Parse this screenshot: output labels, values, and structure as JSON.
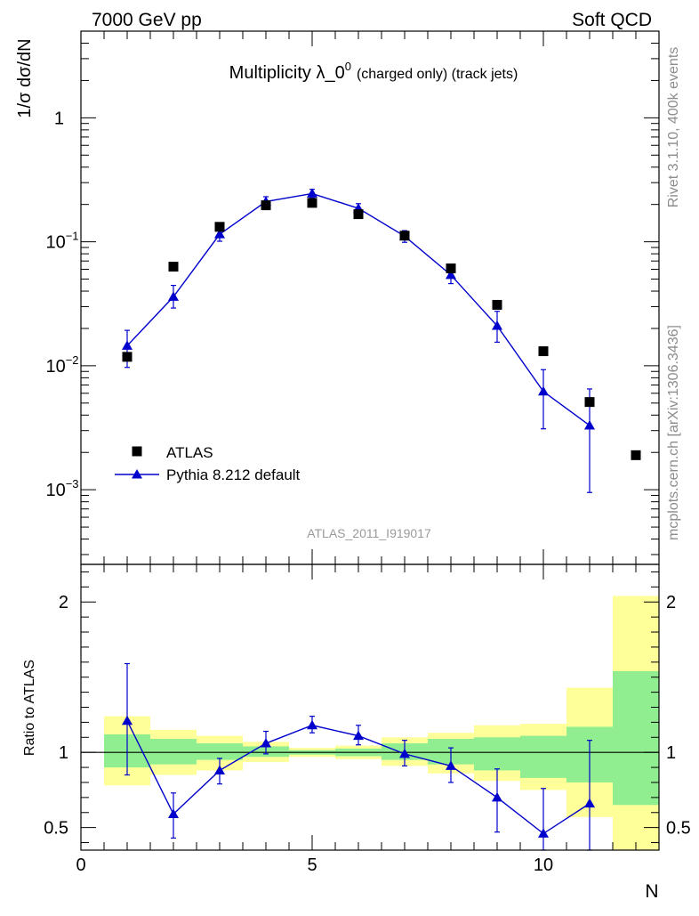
{
  "header": {
    "energy_label": "7000 GeV pp",
    "category_label": "Soft QCD"
  },
  "side_notes": {
    "version": "Rivet 3.1.10,  400k events",
    "source": "mcplots.cern.ch [arXiv:1306.3436]"
  },
  "analysis_tag": "ATLAS_2011_I919017",
  "colors": {
    "atlas": "#000000",
    "pythia": "#0000cc",
    "band_inner": "#90ee90",
    "band_outer": "#ffff99"
  },
  "chart_data": [
    {
      "type": "scatter",
      "panel": "main",
      "title_main": "Multiplicity λ_0",
      "title_sup": "0",
      "title_small": "(charged only) (track jets)",
      "xlabel": "N",
      "ylabel": "1/σ dσ/dN",
      "yscale": "log",
      "xlim": [
        0,
        12.5
      ],
      "ylim": [
        0.00025,
        5
      ],
      "y_tick_labels": [
        {
          "mantissa": "10",
          "exp": "−3",
          "value": 0.001
        },
        {
          "mantissa": "10",
          "exp": "−2",
          "value": 0.01
        },
        {
          "mantissa": "10",
          "exp": "−1",
          "value": 0.1
        },
        {
          "mantissa": "1",
          "exp": "",
          "value": 1
        }
      ],
      "legend": [
        {
          "label": "ATLAS",
          "marker": "square"
        },
        {
          "label": "Pythia 8.212 default",
          "marker": "triangle-line"
        }
      ],
      "series": [
        {
          "name": "ATLAS",
          "x": [
            1,
            2,
            3,
            4,
            5,
            6,
            7,
            8,
            9,
            10,
            11,
            12
          ],
          "values": [
            0.0118,
            0.063,
            0.132,
            0.197,
            0.206,
            0.167,
            0.112,
            0.061,
            0.031,
            0.0131,
            0.0051,
            0.0019
          ]
        },
        {
          "name": "Pythia 8.212 default",
          "x": [
            1,
            2,
            3,
            4,
            5,
            6,
            7,
            8,
            9,
            10,
            11
          ],
          "values": [
            0.0145,
            0.036,
            0.115,
            0.211,
            0.245,
            0.186,
            0.111,
            0.054,
            0.021,
            0.0062,
            0.0033
          ],
          "err_low": [
            0.0048,
            0.0068,
            0.014,
            0.02,
            0.02,
            0.017,
            0.012,
            0.008,
            0.0055,
            0.0031,
            0.00235
          ],
          "err_high": [
            0.0048,
            0.0085,
            0.014,
            0.02,
            0.02,
            0.017,
            0.012,
            0.008,
            0.0065,
            0.0031,
            0.0032
          ]
        }
      ]
    },
    {
      "type": "line",
      "panel": "ratio",
      "xlabel": "N",
      "ylabel": "Ratio to ATLAS",
      "xlim": [
        0,
        12.5
      ],
      "ylim": [
        0.35,
        2.25
      ],
      "x_ticks": [
        0,
        5,
        10
      ],
      "y_ticks": [
        0.5,
        1,
        2
      ],
      "reference_line": 1,
      "bands": {
        "x_bins": [
          [
            0.5,
            1.5
          ],
          [
            1.5,
            2.5
          ],
          [
            2.5,
            3.5
          ],
          [
            3.5,
            4.5
          ],
          [
            4.5,
            5.5
          ],
          [
            5.5,
            6.5
          ],
          [
            6.5,
            7.5
          ],
          [
            7.5,
            8.5
          ],
          [
            8.5,
            9.5
          ],
          [
            9.5,
            10.5
          ],
          [
            10.5,
            11.5
          ],
          [
            11.5,
            12.5
          ]
        ],
        "inner": [
          [
            0.9,
            1.12
          ],
          [
            0.92,
            1.09
          ],
          [
            0.95,
            1.06
          ],
          [
            0.97,
            1.04
          ],
          [
            0.985,
            1.015
          ],
          [
            0.975,
            1.025
          ],
          [
            0.95,
            1.06
          ],
          [
            0.92,
            1.09
          ],
          [
            0.88,
            1.1
          ],
          [
            0.83,
            1.11
          ],
          [
            0.8,
            1.17
          ],
          [
            0.65,
            1.54
          ]
        ],
        "outer": [
          [
            0.78,
            1.24
          ],
          [
            0.85,
            1.15
          ],
          [
            0.88,
            1.11
          ],
          [
            0.935,
            1.07
          ],
          [
            0.97,
            1.03
          ],
          [
            0.955,
            1.045
          ],
          [
            0.91,
            1.1
          ],
          [
            0.86,
            1.13
          ],
          [
            0.81,
            1.18
          ],
          [
            0.75,
            1.19
          ],
          [
            0.57,
            1.43
          ],
          [
            0.3,
            2.04
          ]
        ]
      },
      "series": [
        {
          "name": "Pythia 8.212 default / ATLAS",
          "x": [
            1,
            2,
            3,
            4,
            5,
            6,
            7,
            8,
            9,
            10,
            11
          ],
          "values": [
            1.21,
            0.59,
            0.88,
            1.06,
            1.18,
            1.11,
            0.99,
            0.91,
            0.7,
            0.46,
            0.66
          ],
          "err_low": [
            0.36,
            0.16,
            0.09,
            0.07,
            0.05,
            0.06,
            0.08,
            0.11,
            0.23,
            0.28,
            0.45
          ],
          "err_high": [
            0.38,
            0.14,
            0.08,
            0.08,
            0.06,
            0.07,
            0.09,
            0.12,
            0.19,
            0.3,
            0.42
          ]
        }
      ]
    }
  ]
}
